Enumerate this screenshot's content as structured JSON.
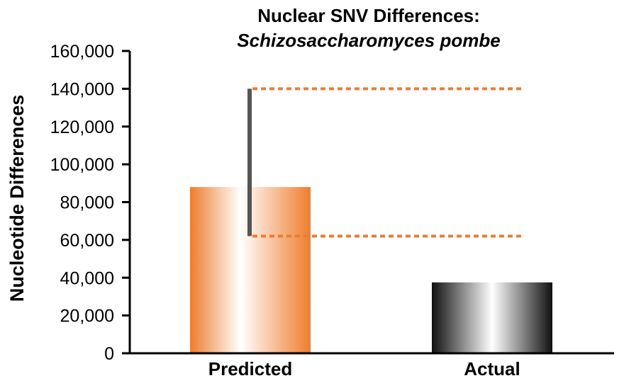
{
  "chart_data": {
    "type": "bar",
    "title": "Nuclear SNV Differences:",
    "subtitle": "Schizosaccharomyces pombe",
    "xlabel": "",
    "ylabel": "Nucleotide Differences",
    "ylim": [
      0,
      160000
    ],
    "yticks": [
      0,
      20000,
      40000,
      60000,
      80000,
      100000,
      120000,
      140000,
      160000
    ],
    "ytick_labels": [
      "0",
      "20,000",
      "40,000",
      "60,000",
      "80,000",
      "100,000",
      "120,000",
      "140,000",
      "160,000"
    ],
    "categories": [
      "Predicted",
      "Actual"
    ],
    "values": [
      88000,
      37500
    ],
    "predicted_range": {
      "low": 62000,
      "high": 140000
    },
    "grid": false,
    "legend": "none",
    "colors": {
      "predicted": "#f07f2e",
      "actual": "#111111",
      "range_bar": "#555555",
      "range_lines": "#e87d35",
      "axis": "#000000"
    }
  }
}
